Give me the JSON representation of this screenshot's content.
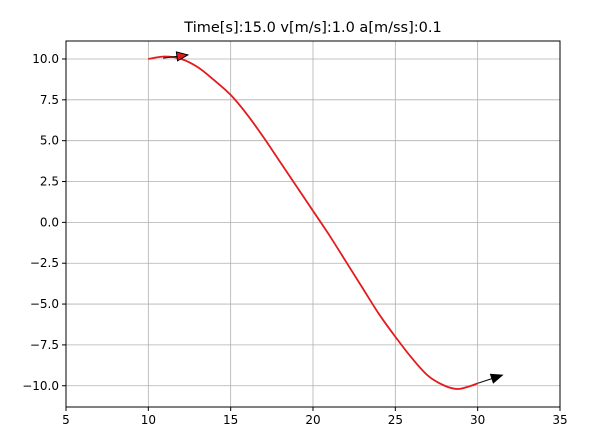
{
  "chart_data": {
    "type": "line",
    "title": "Time[s]:15.0 v[m/s]:1.0 a[m/ss]:0.1",
    "xlabel": "",
    "ylabel": "",
    "xlim": [
      5,
      35
    ],
    "ylim": [
      -11.3,
      11.1
    ],
    "xticks": [
      5,
      10,
      15,
      20,
      25,
      30,
      35
    ],
    "yticks": [
      -10.0,
      -7.5,
      -5.0,
      -2.5,
      0.0,
      2.5,
      5.0,
      7.5,
      10.0
    ],
    "xtick_labels": [
      "5",
      "10",
      "15",
      "20",
      "25",
      "30",
      "35"
    ],
    "ytick_labels": [
      "−10.0",
      "−7.5",
      "−5.0",
      "−2.5",
      "0.0",
      "2.5",
      "5.0",
      "7.5",
      "10.0"
    ],
    "grid": true,
    "series": [
      {
        "color": "#e41a1c",
        "x": [
          10.0,
          11.0,
          12.0,
          13.0,
          14.0,
          15.0,
          16.0,
          17.0,
          18.0,
          19.0,
          20.0,
          21.0,
          22.0,
          23.0,
          24.0,
          25.0,
          26.0,
          27.0,
          28.0,
          28.8,
          29.6,
          30.0
        ],
        "y": [
          10.0,
          10.15,
          10.0,
          9.5,
          8.7,
          7.8,
          6.6,
          5.2,
          3.7,
          2.2,
          0.7,
          -0.8,
          -2.4,
          -4.0,
          -5.6,
          -7.0,
          -8.3,
          -9.4,
          -10.0,
          -10.2,
          -10.0,
          -9.85
        ]
      }
    ],
    "arrows": [
      {
        "x": 10.9,
        "y": 10.05,
        "dx": 1.5,
        "dy": 0.2,
        "color": "#e41a1c"
      },
      {
        "x": 30.0,
        "y": -9.85,
        "dx": 1.5,
        "dy": 0.5,
        "color": "#000000"
      }
    ]
  }
}
